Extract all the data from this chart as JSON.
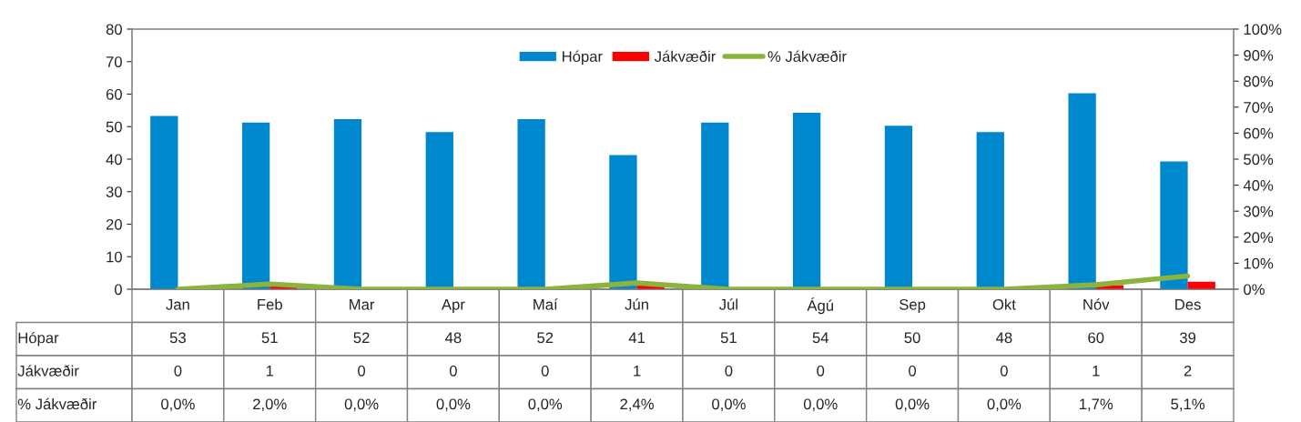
{
  "chart_data": {
    "type": "bar",
    "categories": [
      "Jan",
      "Feb",
      "Mar",
      "Apr",
      "Maí",
      "Jún",
      "Júl",
      "Ágú",
      "Sep",
      "Okt",
      "Nóv",
      "Des"
    ],
    "series": [
      {
        "name": "Hópar",
        "color": "#0088cf",
        "values": [
          53,
          51,
          52,
          48,
          52,
          41,
          51,
          54,
          50,
          48,
          60,
          39
        ],
        "value_labels": [
          "53",
          "51",
          "52",
          "48",
          "52",
          "41",
          "51",
          "54",
          "50",
          "48",
          "60",
          "39"
        ]
      },
      {
        "name": "Jákvæðir",
        "color": "#ff0000",
        "values": [
          0,
          1,
          0,
          0,
          0,
          1,
          0,
          0,
          0,
          0,
          1,
          2
        ],
        "value_labels": [
          "0",
          "1",
          "0",
          "0",
          "0",
          "1",
          "0",
          "0",
          "0",
          "0",
          "1",
          "2"
        ]
      },
      {
        "name": "% Jákvæðir",
        "type": "line",
        "axis": "y2",
        "color": "#8cb43c",
        "values": [
          0.0,
          2.0,
          0.0,
          0.0,
          0.0,
          2.4,
          0.0,
          0.0,
          0.0,
          0.0,
          1.7,
          5.1
        ],
        "value_labels": [
          "0,0%",
          "2,0%",
          "0,0%",
          "0,0%",
          "0,0%",
          "2,4%",
          "0,0%",
          "0,0%",
          "0,0%",
          "0,0%",
          "1,7%",
          "5,1%"
        ]
      }
    ],
    "ylim": [
      0,
      80
    ],
    "yticks": [
      0,
      10,
      20,
      30,
      40,
      50,
      60,
      70,
      80
    ],
    "y2lim": [
      0,
      100
    ],
    "y2ticks": [
      {
        "value": 0,
        "label": "0%"
      },
      {
        "value": 10,
        "label": "10%"
      },
      {
        "value": 20,
        "label": "20%"
      },
      {
        "value": 30,
        "label": "30%"
      },
      {
        "value": 40,
        "label": "40%"
      },
      {
        "value": 50,
        "label": "50%"
      },
      {
        "value": 60,
        "label": "60%"
      },
      {
        "value": 70,
        "label": "70%"
      },
      {
        "value": 80,
        "label": "80%"
      },
      {
        "value": 90,
        "label": "90%"
      },
      {
        "value": 100,
        "label": "100%"
      }
    ],
    "grid": false,
    "legend": "top",
    "marker": "none",
    "line_style": "solid"
  }
}
